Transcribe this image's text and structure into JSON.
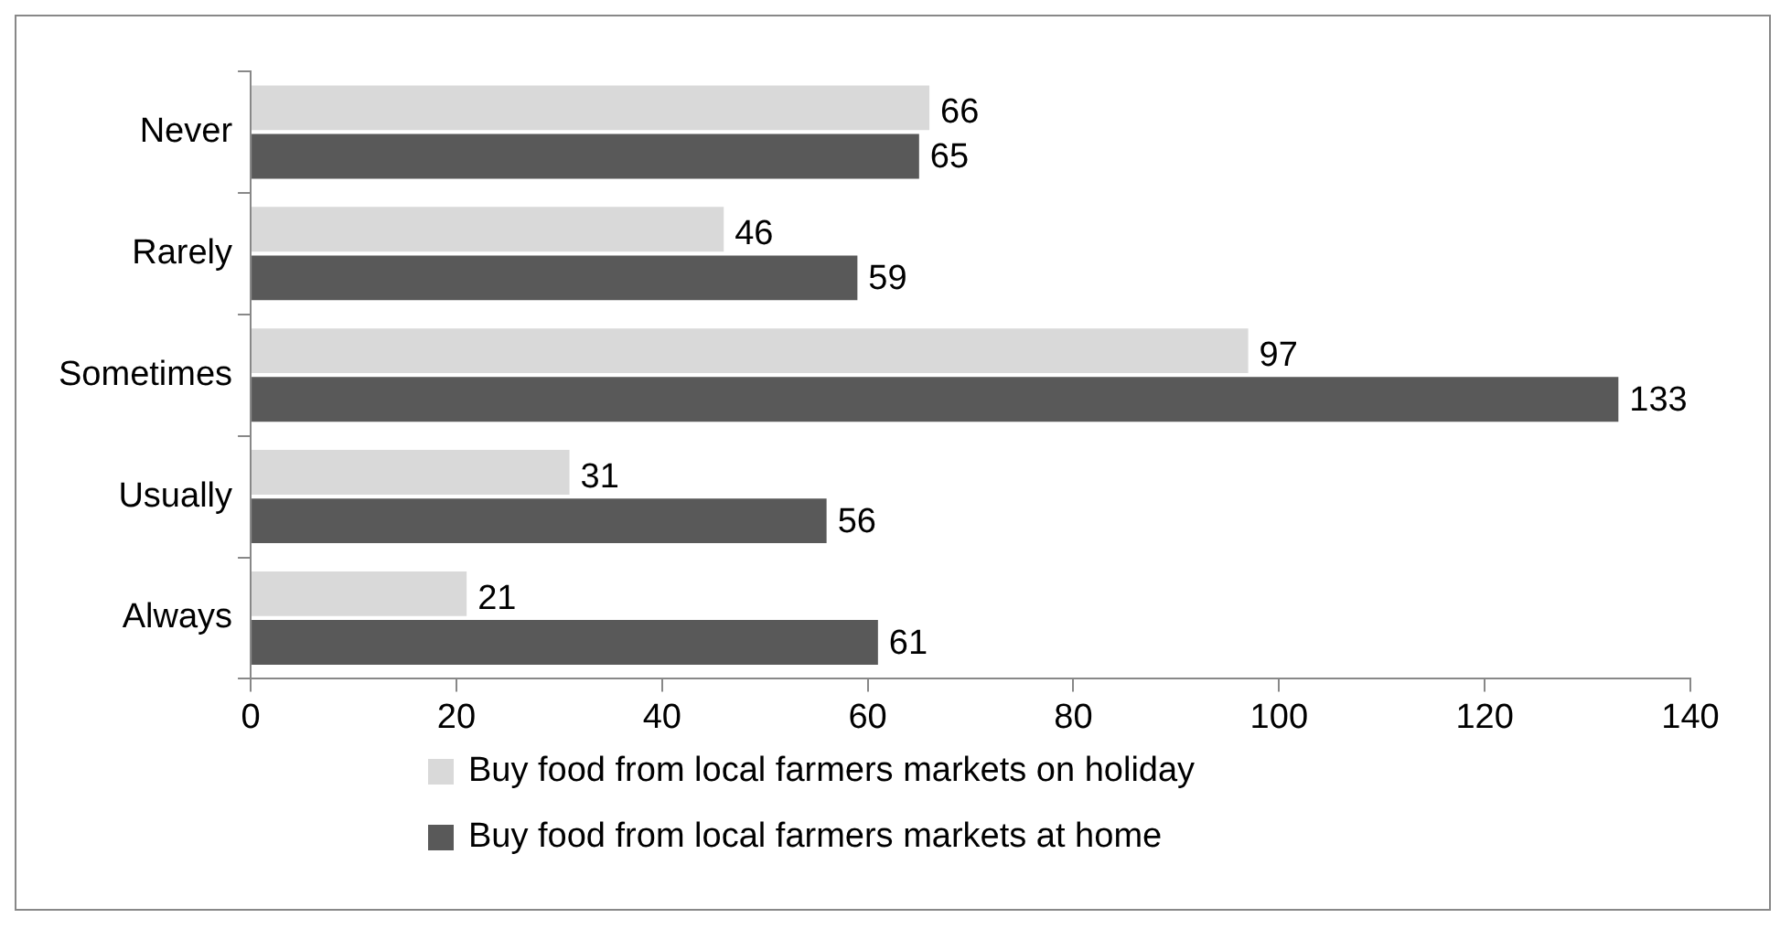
{
  "chart_data": {
    "type": "bar",
    "orientation": "horizontal",
    "categories": [
      "Never",
      "Rarely",
      "Sometimes",
      "Usually",
      "Always"
    ],
    "series": [
      {
        "name": "Buy food from local farmers markets on holiday",
        "color": "#d9d9d9",
        "values": [
          66,
          46,
          97,
          31,
          21
        ]
      },
      {
        "name": "Buy food from local farmers markets at home",
        "color": "#595959",
        "values": [
          65,
          59,
          133,
          56,
          61
        ]
      }
    ],
    "xlim": [
      0,
      140
    ],
    "xticks": [
      0,
      20,
      40,
      60,
      80,
      100,
      120,
      140
    ],
    "grid": false,
    "legend": "bottom",
    "data_labels": true
  }
}
